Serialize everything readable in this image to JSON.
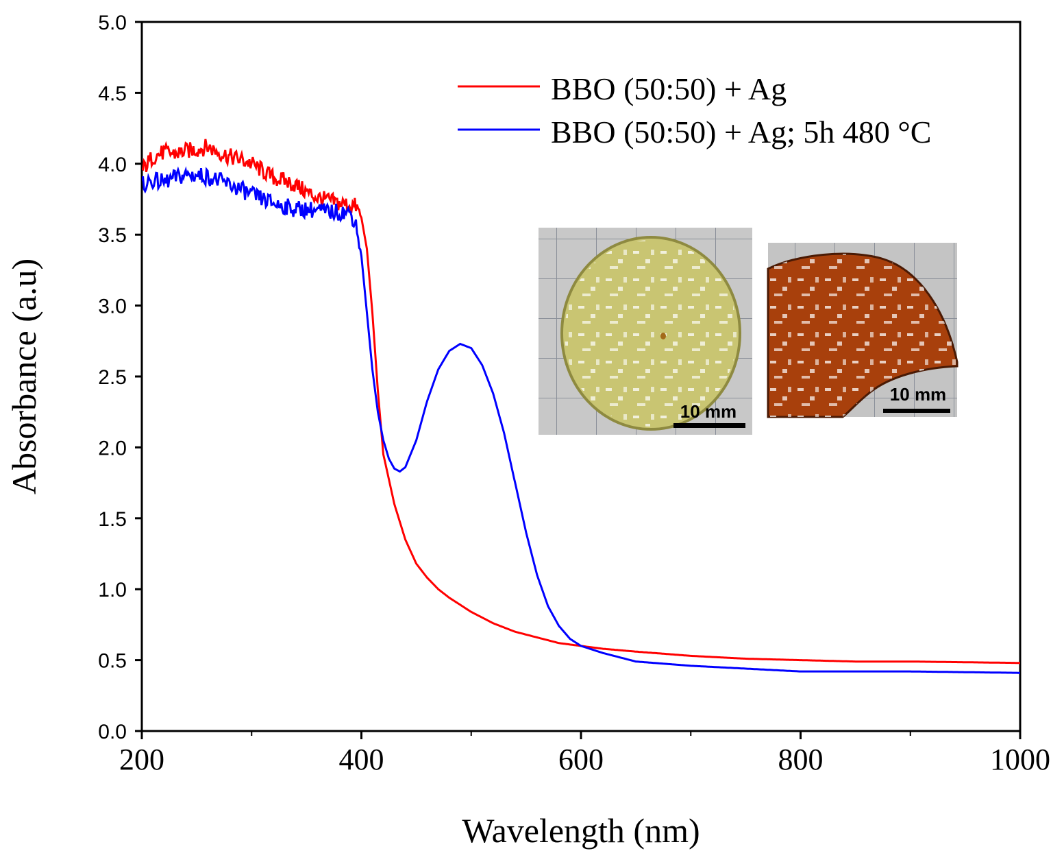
{
  "chart_data": {
    "type": "line",
    "title": "",
    "xlabel": "Wavelength (nm)",
    "ylabel": "Absorbance (a.u)",
    "xlim": [
      200,
      1000
    ],
    "ylim": [
      0.0,
      5.0
    ],
    "x_major_ticks": [
      200,
      400,
      600,
      800,
      1000
    ],
    "x_minor_ticks": [
      300,
      500,
      700,
      900
    ],
    "x_tick_labels": [
      "200",
      "400",
      "600",
      "800",
      "1000"
    ],
    "y_major_ticks": [
      0.0,
      0.5,
      1.0,
      1.5,
      2.0,
      2.5,
      3.0,
      3.5,
      4.0,
      4.5,
      5.0
    ],
    "y_tick_labels": [
      "0.0",
      "0.5",
      "1.0",
      "1.5",
      "2.0",
      "2.5",
      "3.0",
      "3.5",
      "4.0",
      "4.5",
      "5.0"
    ],
    "legend_position": "top-right",
    "series": [
      {
        "name": "BBO (50:50) + Ag",
        "color": "#ff0000",
        "points": [
          [
            200,
            3.95
          ],
          [
            210,
            4.05
          ],
          [
            220,
            4.08
          ],
          [
            230,
            4.07
          ],
          [
            240,
            4.09
          ],
          [
            250,
            4.1
          ],
          [
            260,
            4.12
          ],
          [
            270,
            4.08
          ],
          [
            280,
            4.05
          ],
          [
            290,
            4.03
          ],
          [
            300,
            4.0
          ],
          [
            310,
            3.95
          ],
          [
            320,
            3.9
          ],
          [
            330,
            3.88
          ],
          [
            340,
            3.85
          ],
          [
            350,
            3.8
          ],
          [
            360,
            3.76
          ],
          [
            370,
            3.74
          ],
          [
            380,
            3.72
          ],
          [
            390,
            3.71
          ],
          [
            395,
            3.7
          ],
          [
            400,
            3.62
          ],
          [
            405,
            3.4
          ],
          [
            410,
            2.95
          ],
          [
            415,
            2.4
          ],
          [
            420,
            1.95
          ],
          [
            430,
            1.6
          ],
          [
            440,
            1.35
          ],
          [
            450,
            1.18
          ],
          [
            460,
            1.08
          ],
          [
            470,
            1.0
          ],
          [
            480,
            0.94
          ],
          [
            490,
            0.89
          ],
          [
            500,
            0.84
          ],
          [
            520,
            0.76
          ],
          [
            540,
            0.7
          ],
          [
            560,
            0.66
          ],
          [
            580,
            0.62
          ],
          [
            600,
            0.6
          ],
          [
            620,
            0.58
          ],
          [
            650,
            0.56
          ],
          [
            700,
            0.53
          ],
          [
            750,
            0.51
          ],
          [
            800,
            0.5
          ],
          [
            850,
            0.49
          ],
          [
            900,
            0.49
          ],
          [
            950,
            0.485
          ],
          [
            1000,
            0.48
          ]
        ]
      },
      {
        "name": "BBO (50:50) + Ag; 5h 480 °C",
        "color": "#0000ff",
        "points": [
          [
            200,
            3.85
          ],
          [
            210,
            3.88
          ],
          [
            220,
            3.87
          ],
          [
            230,
            3.9
          ],
          [
            240,
            3.92
          ],
          [
            250,
            3.92
          ],
          [
            260,
            3.91
          ],
          [
            270,
            3.88
          ],
          [
            280,
            3.85
          ],
          [
            290,
            3.82
          ],
          [
            300,
            3.78
          ],
          [
            310,
            3.75
          ],
          [
            320,
            3.72
          ],
          [
            330,
            3.7
          ],
          [
            340,
            3.68
          ],
          [
            350,
            3.68
          ],
          [
            360,
            3.67
          ],
          [
            370,
            3.66
          ],
          [
            380,
            3.66
          ],
          [
            390,
            3.65
          ],
          [
            395,
            3.58
          ],
          [
            400,
            3.35
          ],
          [
            405,
            2.95
          ],
          [
            410,
            2.55
          ],
          [
            415,
            2.25
          ],
          [
            420,
            2.05
          ],
          [
            425,
            1.92
          ],
          [
            430,
            1.85
          ],
          [
            435,
            1.83
          ],
          [
            440,
            1.86
          ],
          [
            450,
            2.05
          ],
          [
            460,
            2.33
          ],
          [
            470,
            2.55
          ],
          [
            480,
            2.68
          ],
          [
            490,
            2.73
          ],
          [
            500,
            2.7
          ],
          [
            510,
            2.58
          ],
          [
            520,
            2.38
          ],
          [
            530,
            2.1
          ],
          [
            540,
            1.75
          ],
          [
            550,
            1.4
          ],
          [
            560,
            1.1
          ],
          [
            570,
            0.88
          ],
          [
            580,
            0.74
          ],
          [
            590,
            0.65
          ],
          [
            600,
            0.6
          ],
          [
            620,
            0.55
          ],
          [
            650,
            0.49
          ],
          [
            700,
            0.46
          ],
          [
            750,
            0.44
          ],
          [
            800,
            0.42
          ],
          [
            850,
            0.42
          ],
          [
            900,
            0.42
          ],
          [
            950,
            0.415
          ],
          [
            1000,
            0.41
          ]
        ]
      }
    ]
  },
  "insets": [
    {
      "caption": "10 mm"
    },
    {
      "caption": "10 mm"
    }
  ]
}
